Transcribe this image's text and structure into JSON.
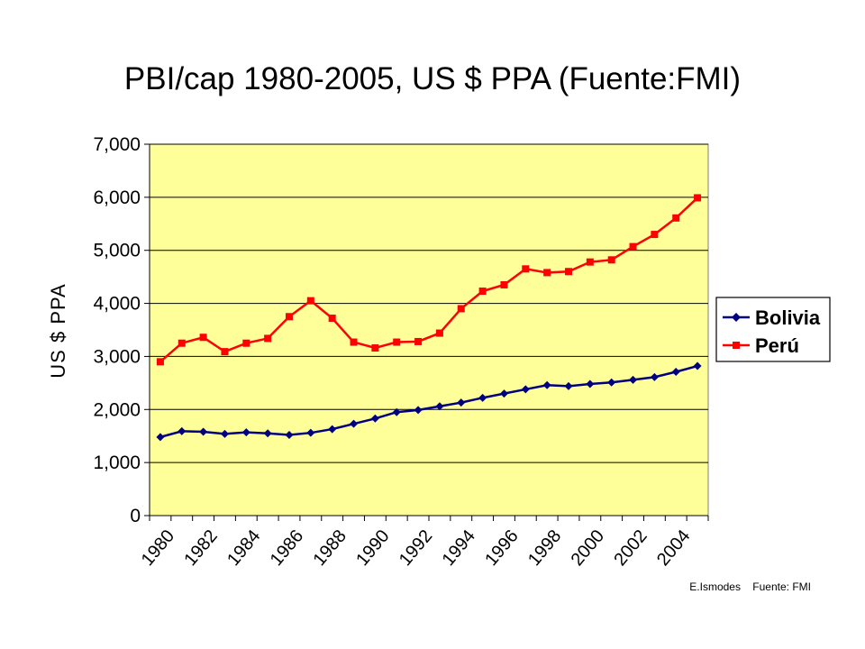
{
  "chart_data": {
    "type": "line",
    "title": "PBI/cap 1980-2005, US $ PPA (Fuente:FMI)",
    "ylabel": "US $ PPA",
    "xlabel": "",
    "ylim": [
      0,
      7000
    ],
    "yticks": [
      0,
      1000,
      2000,
      3000,
      4000,
      5000,
      6000,
      7000
    ],
    "ytick_labels": [
      "0",
      "1,000",
      "2,000",
      "3,000",
      "4,000",
      "5,000",
      "6,000",
      "7,000"
    ],
    "x": [
      1980,
      1981,
      1982,
      1983,
      1984,
      1985,
      1986,
      1987,
      1988,
      1989,
      1990,
      1991,
      1992,
      1993,
      1994,
      1995,
      1996,
      1997,
      1998,
      1999,
      2000,
      2001,
      2002,
      2003,
      2004,
      2005
    ],
    "x_tick_labels": [
      "1980",
      "1982",
      "1984",
      "1986",
      "1988",
      "1990",
      "1992",
      "1994",
      "1996",
      "1998",
      "2000",
      "2002",
      "2004"
    ],
    "series": [
      {
        "name": "Bolivia",
        "color": "#000080",
        "marker": "diamond",
        "values": [
          1480,
          1590,
          1580,
          1540,
          1570,
          1550,
          1520,
          1560,
          1630,
          1730,
          1830,
          1950,
          1990,
          2060,
          2130,
          2220,
          2300,
          2380,
          2460,
          2440,
          2480,
          2510,
          2560,
          2610,
          2710,
          2820
        ]
      },
      {
        "name": "Perú",
        "color": "#ff0000",
        "marker": "square",
        "values": [
          2900,
          3250,
          3360,
          3090,
          3250,
          3340,
          3750,
          4050,
          3720,
          3270,
          3160,
          3270,
          3280,
          3440,
          3900,
          4230,
          4350,
          4650,
          4580,
          4600,
          4780,
          4820,
          5070,
          5300,
          5610,
          5990
        ]
      }
    ],
    "plot_background": "#ffff99",
    "grid": true,
    "legend_position": "right",
    "credit": "E.Ismodes    Fuente: FMI"
  }
}
